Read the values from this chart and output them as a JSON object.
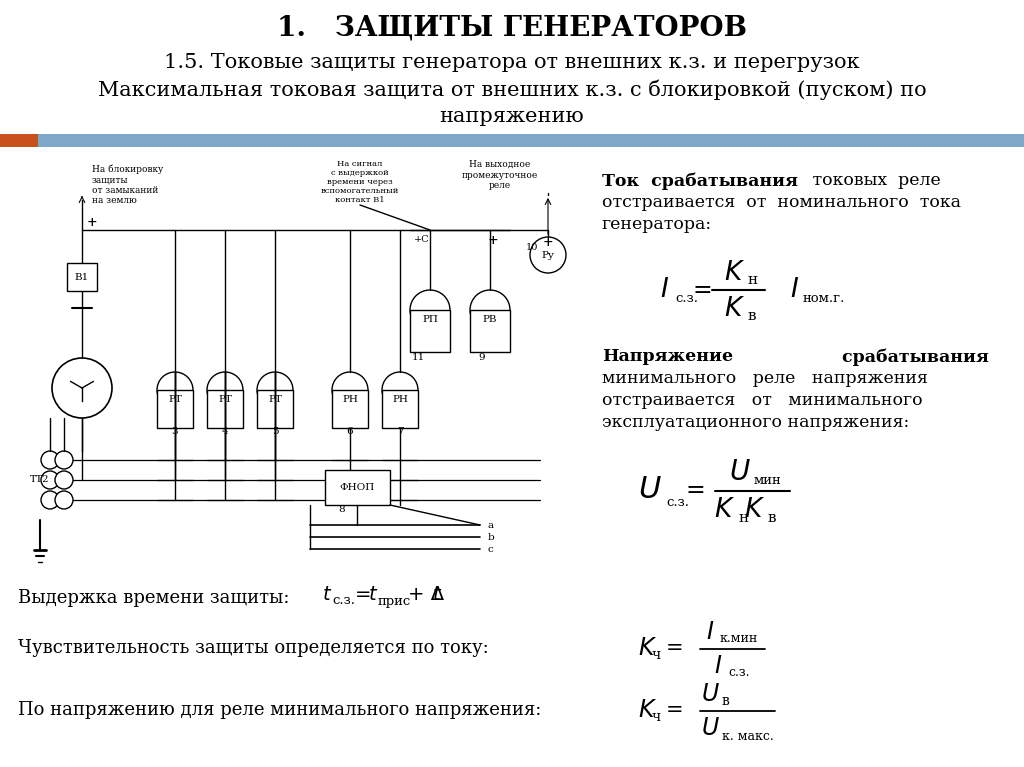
{
  "title_main": "1.   ЗАЩИТЫ ГЕНЕРАТОРОВ",
  "title_sub1": "1.5. Токовые защиты генератора от внешних к.з. и перегрузок",
  "title_sub2": "Максимальная токовая защита от внешних к.з. с блокировкой (пуском) по",
  "title_sub3": "напряжению",
  "header_bar_color1": "#c8501a",
  "header_bar_color2": "#7fa8c8",
  "bg_color": "#ffffff",
  "text_color": "#000000"
}
